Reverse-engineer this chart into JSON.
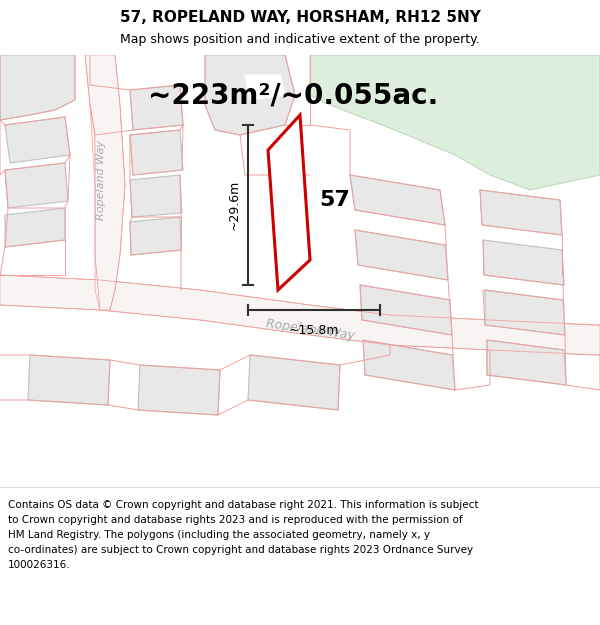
{
  "title": "57, ROPELAND WAY, HORSHAM, RH12 5NY",
  "subtitle": "Map shows position and indicative extent of the property.",
  "area_text": "~223m²/~0.055ac.",
  "dim_vertical": "~29.6m",
  "dim_horizontal": "~15.8m",
  "house_number": "57",
  "copyright_lines": [
    "Contains OS data © Crown copyright and database right 2021. This information is subject",
    "to Crown copyright and database rights 2023 and is reproduced with the permission of",
    "HM Land Registry. The polygons (including the associated geometry, namely x, y",
    "co-ordinates) are subject to Crown copyright and database rights 2023 Ordnance Survey",
    "100026316."
  ],
  "background_color": "#ffffff",
  "map_bg_color": "#ffffff",
  "boundary_color": "#f0a0a0",
  "highlight_color": "#cc0000",
  "highlight_fill": "#ffffff",
  "building_color": "#e8e8e8",
  "building_outline": "#c0c0c0",
  "green_area_color": "#ddeedd",
  "green_area_outline": "#c0d8c0",
  "dim_line_color": "#303030",
  "road_label_color": "#aaaaaa",
  "road_fill": "#f8f4f4",
  "title_fontsize": 11,
  "subtitle_fontsize": 9,
  "area_fontsize": 20,
  "label_fontsize": 16,
  "copyright_fontsize": 7.5
}
